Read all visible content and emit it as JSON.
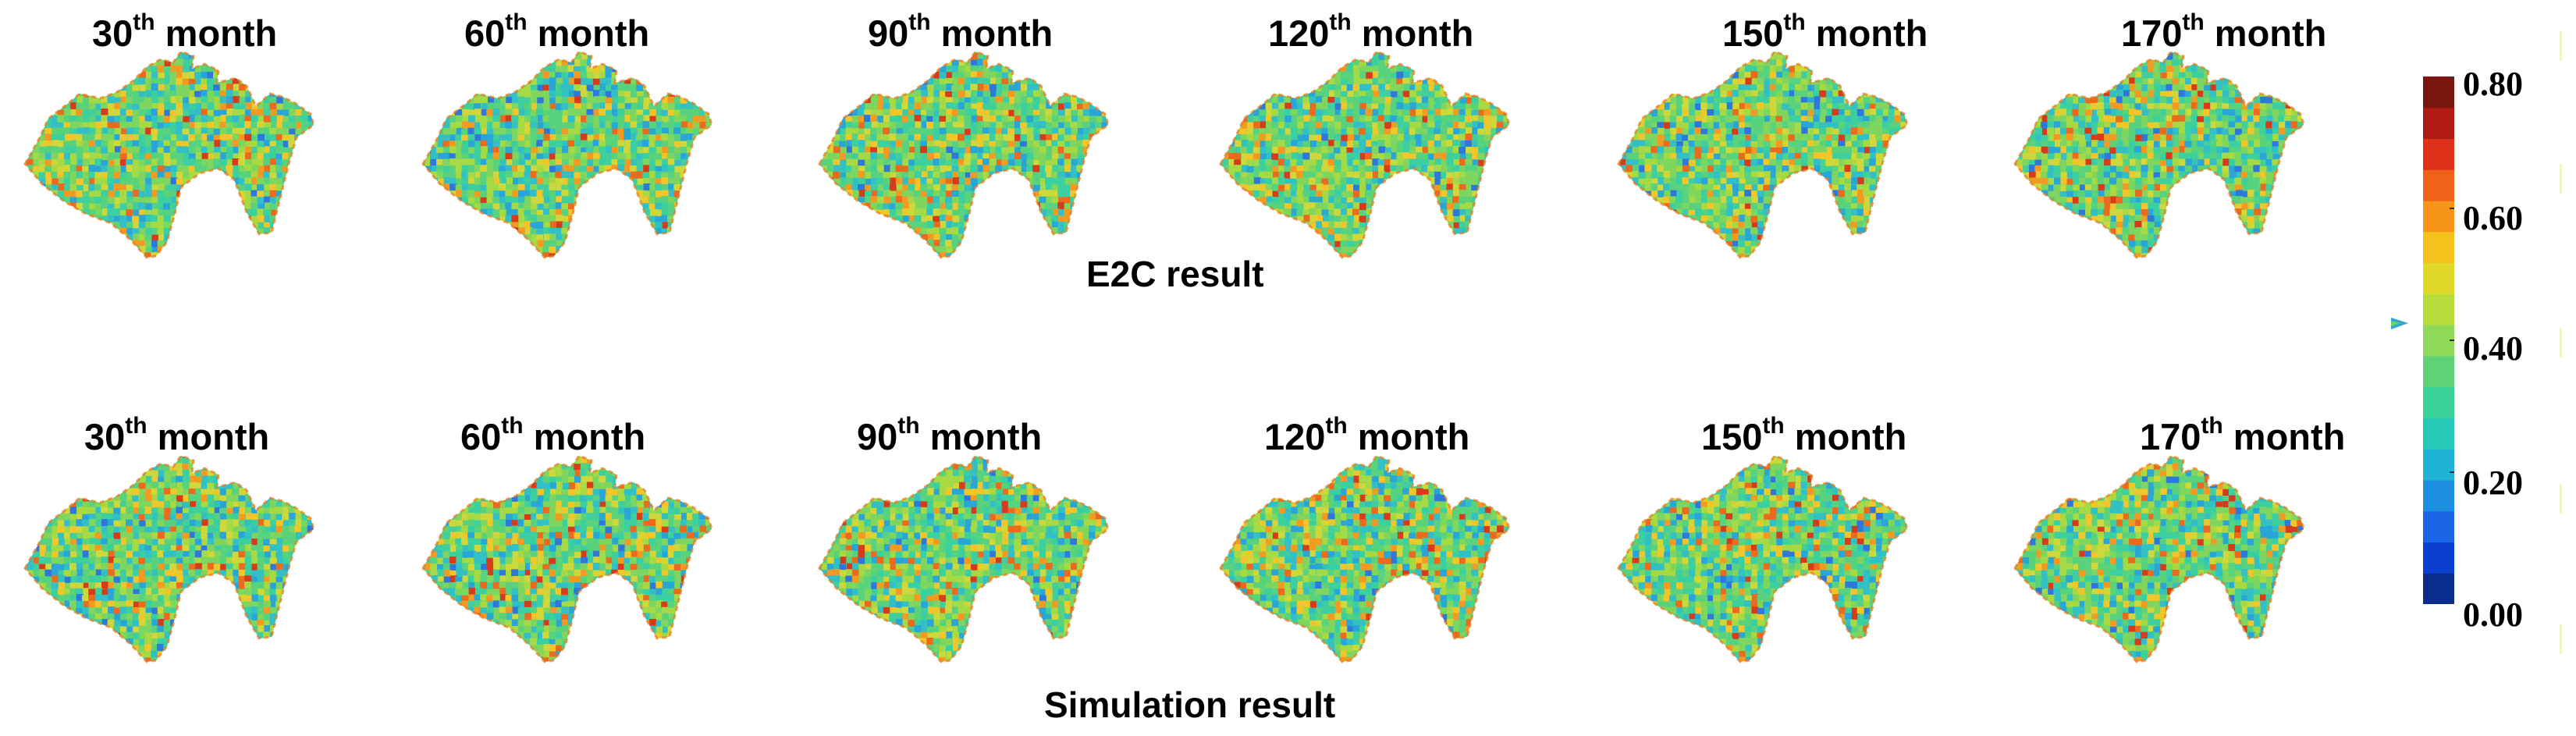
{
  "rows": [
    {
      "caption": "E2C result",
      "panels": [
        {
          "num": "30",
          "sup": "th",
          "word": " month"
        },
        {
          "num": "60",
          "sup": "th",
          "word": " month"
        },
        {
          "num": "90",
          "sup": "th",
          "word": " month"
        },
        {
          "num": "120",
          "sup": "th",
          "word": " month"
        },
        {
          "num": "150",
          "sup": "th",
          "word": " month"
        },
        {
          "num": "170",
          "sup": "th",
          "word": " month"
        }
      ]
    },
    {
      "caption": "Simulation result",
      "panels": [
        {
          "num": "30",
          "sup": "th",
          "word": " month"
        },
        {
          "num": "60",
          "sup": "th",
          "word": " month"
        },
        {
          "num": "90",
          "sup": "th",
          "word": " month"
        },
        {
          "num": "120",
          "sup": "th",
          "word": " month"
        },
        {
          "num": "150",
          "sup": "th",
          "word": " month"
        },
        {
          "num": "170",
          "sup": "th",
          "word": " month"
        }
      ]
    }
  ],
  "colorbar": {
    "ticks": [
      "0.80",
      "0.60",
      "0.40",
      "0.20",
      "0.00"
    ],
    "min": 0.0,
    "max": 0.8,
    "colors": [
      "#0a2c8f",
      "#0a3fd0",
      "#1a66e6",
      "#1c8fe0",
      "#1fb3d6",
      "#26c9b8",
      "#39d39a",
      "#5fd277",
      "#8fd858",
      "#b8dc3c",
      "#e0d92a",
      "#f6c21e",
      "#f7941a",
      "#f0621a",
      "#e0321a",
      "#b01a14",
      "#7a1510"
    ]
  }
}
